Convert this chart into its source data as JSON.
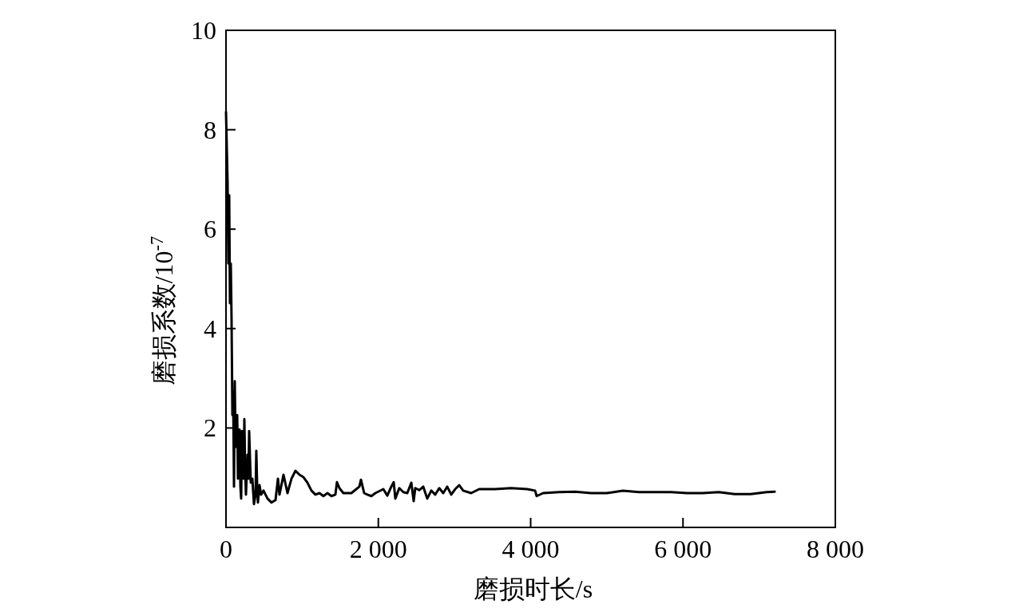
{
  "chart_data": {
    "type": "line",
    "xlabel": "磨损时长/s",
    "ylabel": "磨损系数/10$^{-7}$",
    "xlim": [
      0,
      8000
    ],
    "ylim": [
      0,
      10
    ],
    "xticks": [
      0,
      {
        "value": 2000,
        "label": "2 000"
      },
      {
        "value": 4000,
        "label": "4 000"
      },
      {
        "value": 6000,
        "label": "6 000"
      },
      {
        "value": 8000,
        "label": "8 000"
      }
    ],
    "yticks": [
      2,
      4,
      6,
      8,
      10
    ],
    "series": [
      {
        "color": "#000000",
        "x": [
          0,
          21,
          31,
          42,
          52,
          63,
          73,
          84,
          94,
          105,
          115,
          126,
          136,
          147,
          157,
          168,
          178,
          189,
          199,
          210,
          231,
          241,
          252,
          262,
          283,
          294,
          304,
          325,
          346,
          367,
          388,
          398,
          409,
          419,
          440,
          461,
          493,
          545,
          598,
          650,
          682,
          702,
          755,
          807,
          860,
          912,
          965,
          1017,
          1069,
          1122,
          1174,
          1227,
          1279,
          1332,
          1384,
          1436,
          1457,
          1489,
          1541,
          1646,
          1751,
          1772,
          1814,
          1856,
          1908,
          1961,
          2066,
          2118,
          2170,
          2202,
          2223,
          2275,
          2328,
          2380,
          2433,
          2464,
          2485,
          2537,
          2590,
          2642,
          2695,
          2747,
          2800,
          2852,
          2904,
          2957,
          3009,
          3062,
          3114,
          3219,
          3324,
          3533,
          3743,
          3953,
          4058,
          4079,
          4163,
          4372,
          4582,
          4792,
          5001,
          5211,
          5422,
          5632,
          5843,
          6053,
          6260,
          6469,
          6679,
          6889,
          7098,
          7204
        ],
        "values": [
          8.36,
          6.92,
          5.31,
          6.68,
          4.51,
          5.31,
          4.19,
          2.26,
          2.74,
          0.82,
          2.94,
          1.62,
          1.94,
          2.26,
          0.98,
          1.22,
          1.97,
          0.82,
          0.58,
          1.94,
          0.98,
          2.18,
          1.14,
          0.66,
          1.46,
          0.98,
          1.94,
          0.9,
          0.98,
          0.47,
          0.66,
          1.54,
          0.82,
          0.5,
          0.85,
          0.66,
          0.74,
          0.58,
          0.5,
          0.55,
          0.98,
          0.66,
          1.06,
          0.69,
          0.98,
          1.14,
          1.06,
          1.01,
          0.9,
          0.74,
          0.66,
          0.69,
          0.63,
          0.69,
          0.63,
          0.66,
          0.91,
          0.79,
          0.69,
          0.69,
          0.82,
          0.96,
          0.69,
          0.66,
          0.63,
          0.69,
          0.77,
          0.64,
          0.82,
          0.91,
          0.58,
          0.79,
          0.71,
          0.69,
          0.9,
          0.53,
          0.79,
          0.75,
          0.82,
          0.58,
          0.74,
          0.66,
          0.79,
          0.69,
          0.82,
          0.66,
          0.77,
          0.85,
          0.74,
          0.69,
          0.77,
          0.77,
          0.79,
          0.77,
          0.74,
          0.63,
          0.69,
          0.71,
          0.72,
          0.69,
          0.69,
          0.74,
          0.71,
          0.71,
          0.71,
          0.69,
          0.69,
          0.71,
          0.67,
          0.67,
          0.71,
          0.72
        ]
      }
    ]
  }
}
